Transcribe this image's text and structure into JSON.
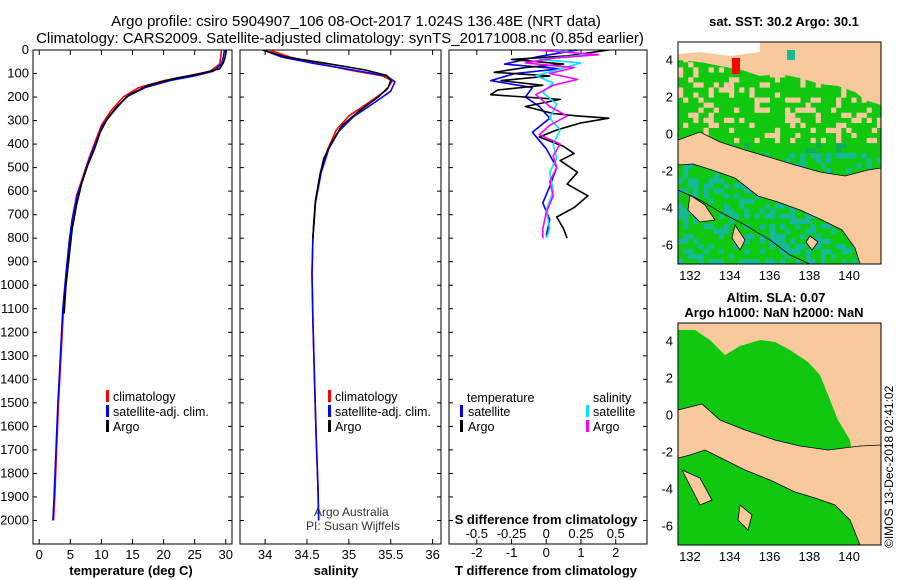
{
  "title": {
    "line1": "Argo profile: csiro 5904907_106 08-Oct-2017 1.024S 136.48E (NRT data)",
    "line2": "Climatology: CARS2009. Satellite-adjusted climatology: synTS_20171008.nc (0.85d earlier)"
  },
  "colors": {
    "climatology": "#ff0000",
    "satellite": "#0000ff",
    "argo": "#000000",
    "satellite_s": "#00e5ff",
    "argo_s": "#ff00ff",
    "land": "#f9c99e",
    "sea_green": "#10c810",
    "sea_teal": "#16b89a"
  },
  "chart_data": [
    {
      "type": "line",
      "id": "temperature",
      "xlabel": "temperature (deg C)",
      "ylabel": "",
      "xlim": [
        -1,
        31
      ],
      "ylim": [
        2100,
        0
      ],
      "y_reversed": true,
      "x_ticks": [
        0,
        5,
        10,
        15,
        20,
        25,
        30
      ],
      "y_ticks": [
        0,
        100,
        200,
        300,
        400,
        500,
        600,
        700,
        800,
        900,
        1000,
        1100,
        1200,
        1300,
        1400,
        1500,
        1600,
        1700,
        1800,
        1900,
        2000
      ],
      "legend": [
        "climatology",
        "satellite-adj. clim.",
        "Argo"
      ],
      "series": [
        {
          "name": "climatology",
          "color": "#ff0000",
          "points": [
            [
              29.3,
              0
            ],
            [
              29.2,
              30
            ],
            [
              29.0,
              60
            ],
            [
              27.5,
              90
            ],
            [
              24,
              110
            ],
            [
              20,
              130
            ],
            [
              16,
              160
            ],
            [
              13.5,
              200
            ],
            [
              11.5,
              260
            ],
            [
              10,
              320
            ],
            [
              9,
              390
            ],
            [
              8,
              460
            ],
            [
              7,
              540
            ],
            [
              6,
              620
            ],
            [
              5.3,
              720
            ],
            [
              4.8,
              820
            ],
            [
              4.4,
              950
            ],
            [
              3.9,
              1100
            ],
            [
              3.5,
              1300
            ],
            [
              3.1,
              1500
            ],
            [
              2.8,
              1700
            ],
            [
              2.5,
              1900
            ],
            [
              2.3,
              2000
            ]
          ]
        },
        {
          "name": "satellite-adj. clim.",
          "color": "#0000ff",
          "points": [
            [
              29.8,
              0
            ],
            [
              29.6,
              30
            ],
            [
              29.3,
              60
            ],
            [
              28,
              90
            ],
            [
              25,
              110
            ],
            [
              21,
              130
            ],
            [
              17,
              160
            ],
            [
              14,
              200
            ],
            [
              12,
              260
            ],
            [
              10.2,
              320
            ],
            [
              9.2,
              390
            ],
            [
              8.1,
              460
            ],
            [
              7.1,
              540
            ],
            [
              6.1,
              620
            ],
            [
              5.3,
              720
            ],
            [
              4.8,
              820
            ],
            [
              4.3,
              950
            ],
            [
              3.8,
              1100
            ],
            [
              3.4,
              1300
            ],
            [
              3.0,
              1500
            ],
            [
              2.7,
              1700
            ],
            [
              2.4,
              1900
            ],
            [
              2.2,
              2000
            ]
          ]
        },
        {
          "name": "Argo",
          "color": "#000000",
          "points": [
            [
              30.1,
              0
            ],
            [
              29.9,
              30
            ],
            [
              29.6,
              55
            ],
            [
              29,
              80
            ],
            [
              26,
              100
            ],
            [
              22,
              120
            ],
            [
              17.5,
              150
            ],
            [
              14.5,
              190
            ],
            [
              12.5,
              240
            ],
            [
              11,
              290
            ],
            [
              9.8,
              350
            ],
            [
              8.9,
              420
            ],
            [
              7.8,
              490
            ],
            [
              6.8,
              570
            ],
            [
              6.0,
              660
            ],
            [
              5.3,
              760
            ],
            [
              4.8,
              880
            ],
            [
              4.3,
              1000
            ],
            [
              4.0,
              1120
            ]
          ]
        }
      ]
    },
    {
      "type": "line",
      "id": "salinity",
      "xlabel": "salinity",
      "xlim": [
        33.7,
        36.1
      ],
      "ylim": [
        2100,
        0
      ],
      "y_reversed": true,
      "x_ticks": [
        34,
        34.5,
        35,
        35.5,
        36
      ],
      "legend": [
        "climatology",
        "satellite-adj. clim.",
        "Argo"
      ],
      "annotation": [
        "Argo Australia",
        "PI: Susan Wijffels"
      ],
      "series": [
        {
          "name": "climatology",
          "color": "#ff0000",
          "points": [
            [
              34.05,
              0
            ],
            [
              34.3,
              30
            ],
            [
              34.6,
              55
            ],
            [
              35.0,
              85
            ],
            [
              35.4,
              110
            ],
            [
              35.52,
              130
            ],
            [
              35.45,
              170
            ],
            [
              35.25,
              220
            ],
            [
              35.0,
              280
            ],
            [
              34.85,
              340
            ],
            [
              34.75,
              420
            ],
            [
              34.66,
              520
            ],
            [
              34.6,
              650
            ],
            [
              34.57,
              800
            ],
            [
              34.56,
              950
            ],
            [
              34.57,
              1150
            ],
            [
              34.59,
              1400
            ],
            [
              34.61,
              1650
            ],
            [
              34.63,
              1850
            ],
            [
              34.64,
              2000
            ]
          ]
        },
        {
          "name": "satellite-adj. clim.",
          "color": "#0000ff",
          "points": [
            [
              33.98,
              0
            ],
            [
              34.2,
              30
            ],
            [
              34.55,
              55
            ],
            [
              35.05,
              85
            ],
            [
              35.45,
              110
            ],
            [
              35.55,
              135
            ],
            [
              35.5,
              175
            ],
            [
              35.3,
              225
            ],
            [
              35.05,
              285
            ],
            [
              34.88,
              345
            ],
            [
              34.76,
              420
            ],
            [
              34.67,
              520
            ],
            [
              34.6,
              650
            ],
            [
              34.57,
              800
            ],
            [
              34.56,
              950
            ],
            [
              34.57,
              1150
            ],
            [
              34.59,
              1400
            ],
            [
              34.61,
              1650
            ],
            [
              34.63,
              1850
            ],
            [
              34.64,
              2000
            ]
          ]
        },
        {
          "name": "Argo",
          "color": "#000000",
          "points": [
            [
              33.97,
              0
            ],
            [
              34.25,
              30
            ],
            [
              34.7,
              55
            ],
            [
              35.2,
              85
            ],
            [
              35.45,
              108
            ],
            [
              35.5,
              130
            ],
            [
              35.47,
              160
            ],
            [
              35.35,
              200
            ],
            [
              35.12,
              260
            ],
            [
              34.92,
              320
            ],
            [
              34.8,
              390
            ],
            [
              34.7,
              460
            ],
            [
              34.65,
              540
            ],
            [
              34.6,
              640
            ],
            [
              34.58,
              740
            ],
            [
              34.57,
              800
            ]
          ]
        }
      ]
    },
    {
      "type": "line",
      "id": "differences",
      "xlabel": "T difference from climatology",
      "xlabel_secondary": "S difference from climatology",
      "xlim": [
        -2.8,
        2.9
      ],
      "ylim": [
        2100,
        0
      ],
      "y_reversed": true,
      "x_ticks": [
        -2,
        -1,
        0,
        1,
        2
      ],
      "x_ticks_s": [
        "-0.5",
        "-0.25",
        "0",
        "0.25",
        "0.5"
      ],
      "x_ticks_s_pos": [
        -2,
        -1,
        0,
        1,
        2
      ],
      "legend_titles": [
        "temperature",
        "salinity"
      ],
      "legend_left": [
        "satellite",
        "Argo"
      ],
      "legend_right": [
        "satellite",
        "Argo"
      ],
      "series": [
        {
          "name": "T satellite",
          "color": "#0000ff",
          "points": [
            [
              0.9,
              0
            ],
            [
              -0.3,
              30
            ],
            [
              -1.2,
              60
            ],
            [
              0.4,
              80
            ],
            [
              -0.9,
              100
            ],
            [
              -1.6,
              130
            ],
            [
              -0.4,
              160
            ],
            [
              -0.6,
              200
            ],
            [
              -0.2,
              240
            ],
            [
              0.1,
              290
            ],
            [
              -0.4,
              350
            ],
            [
              0,
              420
            ],
            [
              0.3,
              500
            ],
            [
              0.1,
              580
            ],
            [
              -0.1,
              650
            ],
            [
              0.1,
              720
            ],
            [
              0,
              790
            ]
          ]
        },
        {
          "name": "T Argo",
          "color": "#000000",
          "points": [
            [
              1.8,
              0
            ],
            [
              0.6,
              25
            ],
            [
              -1.0,
              40
            ],
            [
              0.5,
              60
            ],
            [
              -0.6,
              75
            ],
            [
              -1.5,
              95
            ],
            [
              0.1,
              110
            ],
            [
              -1.3,
              130
            ],
            [
              -0.1,
              150
            ],
            [
              -1.4,
              170
            ],
            [
              -1.6,
              190
            ],
            [
              0.4,
              210
            ],
            [
              -0.6,
              240
            ],
            [
              0.2,
              270
            ],
            [
              0.9,
              280
            ],
            [
              1.8,
              290
            ],
            [
              1.0,
              310
            ],
            [
              0.3,
              340
            ],
            [
              -0.2,
              370
            ],
            [
              0.5,
              410
            ],
            [
              0.8,
              440
            ],
            [
              0.4,
              470
            ],
            [
              0.9,
              520
            ],
            [
              0.6,
              570
            ],
            [
              1.2,
              620
            ],
            [
              0.8,
              670
            ],
            [
              0.3,
              710
            ],
            [
              0.5,
              760
            ],
            [
              0.6,
              800
            ]
          ]
        },
        {
          "name": "S satellite",
          "color": "#00e5ff",
          "points": [
            [
              0.2,
              0
            ],
            [
              1.2,
              20
            ],
            [
              -0.2,
              40
            ],
            [
              1.0,
              55
            ],
            [
              0.4,
              80
            ],
            [
              -0.3,
              110
            ],
            [
              0.2,
              140
            ],
            [
              -0.1,
              180
            ],
            [
              0.3,
              230
            ],
            [
              0.1,
              290
            ],
            [
              0.4,
              340
            ],
            [
              0.2,
              400
            ],
            [
              0.3,
              460
            ],
            [
              0.1,
              520
            ],
            [
              0.2,
              600
            ],
            [
              0,
              680
            ],
            [
              0.1,
              760
            ],
            [
              0,
              800
            ]
          ]
        },
        {
          "name": "S Argo",
          "color": "#ff00ff",
          "points": [
            [
              -0.3,
              0
            ],
            [
              1.5,
              20
            ],
            [
              0.2,
              35
            ],
            [
              -0.6,
              55
            ],
            [
              0.8,
              75
            ],
            [
              0.1,
              100
            ],
            [
              0.9,
              125
            ],
            [
              0.2,
              150
            ],
            [
              -0.3,
              190
            ],
            [
              0.1,
              240
            ],
            [
              0.6,
              280
            ],
            [
              0.1,
              320
            ],
            [
              -0.2,
              360
            ],
            [
              0.4,
              400
            ],
            [
              0.2,
              450
            ],
            [
              0.3,
              500
            ],
            [
              0.1,
              560
            ],
            [
              0.2,
              620
            ],
            [
              0.0,
              690
            ],
            [
              -0.1,
              760
            ],
            [
              -0.1,
              800
            ]
          ]
        }
      ]
    },
    {
      "type": "heatmap",
      "id": "sst_map",
      "title": "sat. SST: 30.2  Argo: 30.1",
      "xlim": [
        131.4,
        141.6
      ],
      "ylim": [
        -7,
        5
      ],
      "x_ticks": [
        132,
        134,
        136,
        138,
        140
      ],
      "y_ticks": [
        -6,
        -4,
        -2,
        0,
        2,
        4
      ],
      "profile_location": [
        136.48,
        -1.024
      ]
    },
    {
      "type": "heatmap",
      "id": "sla_map",
      "title": "Altim. SLA: 0.07",
      "subtitle": "Argo h1000: NaN h2000: NaN",
      "xlim": [
        131.4,
        141.6
      ],
      "ylim": [
        -7,
        5
      ],
      "x_ticks": [
        132,
        134,
        136,
        138,
        140
      ],
      "y_ticks": [
        -6,
        -4,
        -2,
        0,
        2,
        4
      ]
    }
  ],
  "stamp": "©IMOS 13-Dec-2018 02:41:02"
}
